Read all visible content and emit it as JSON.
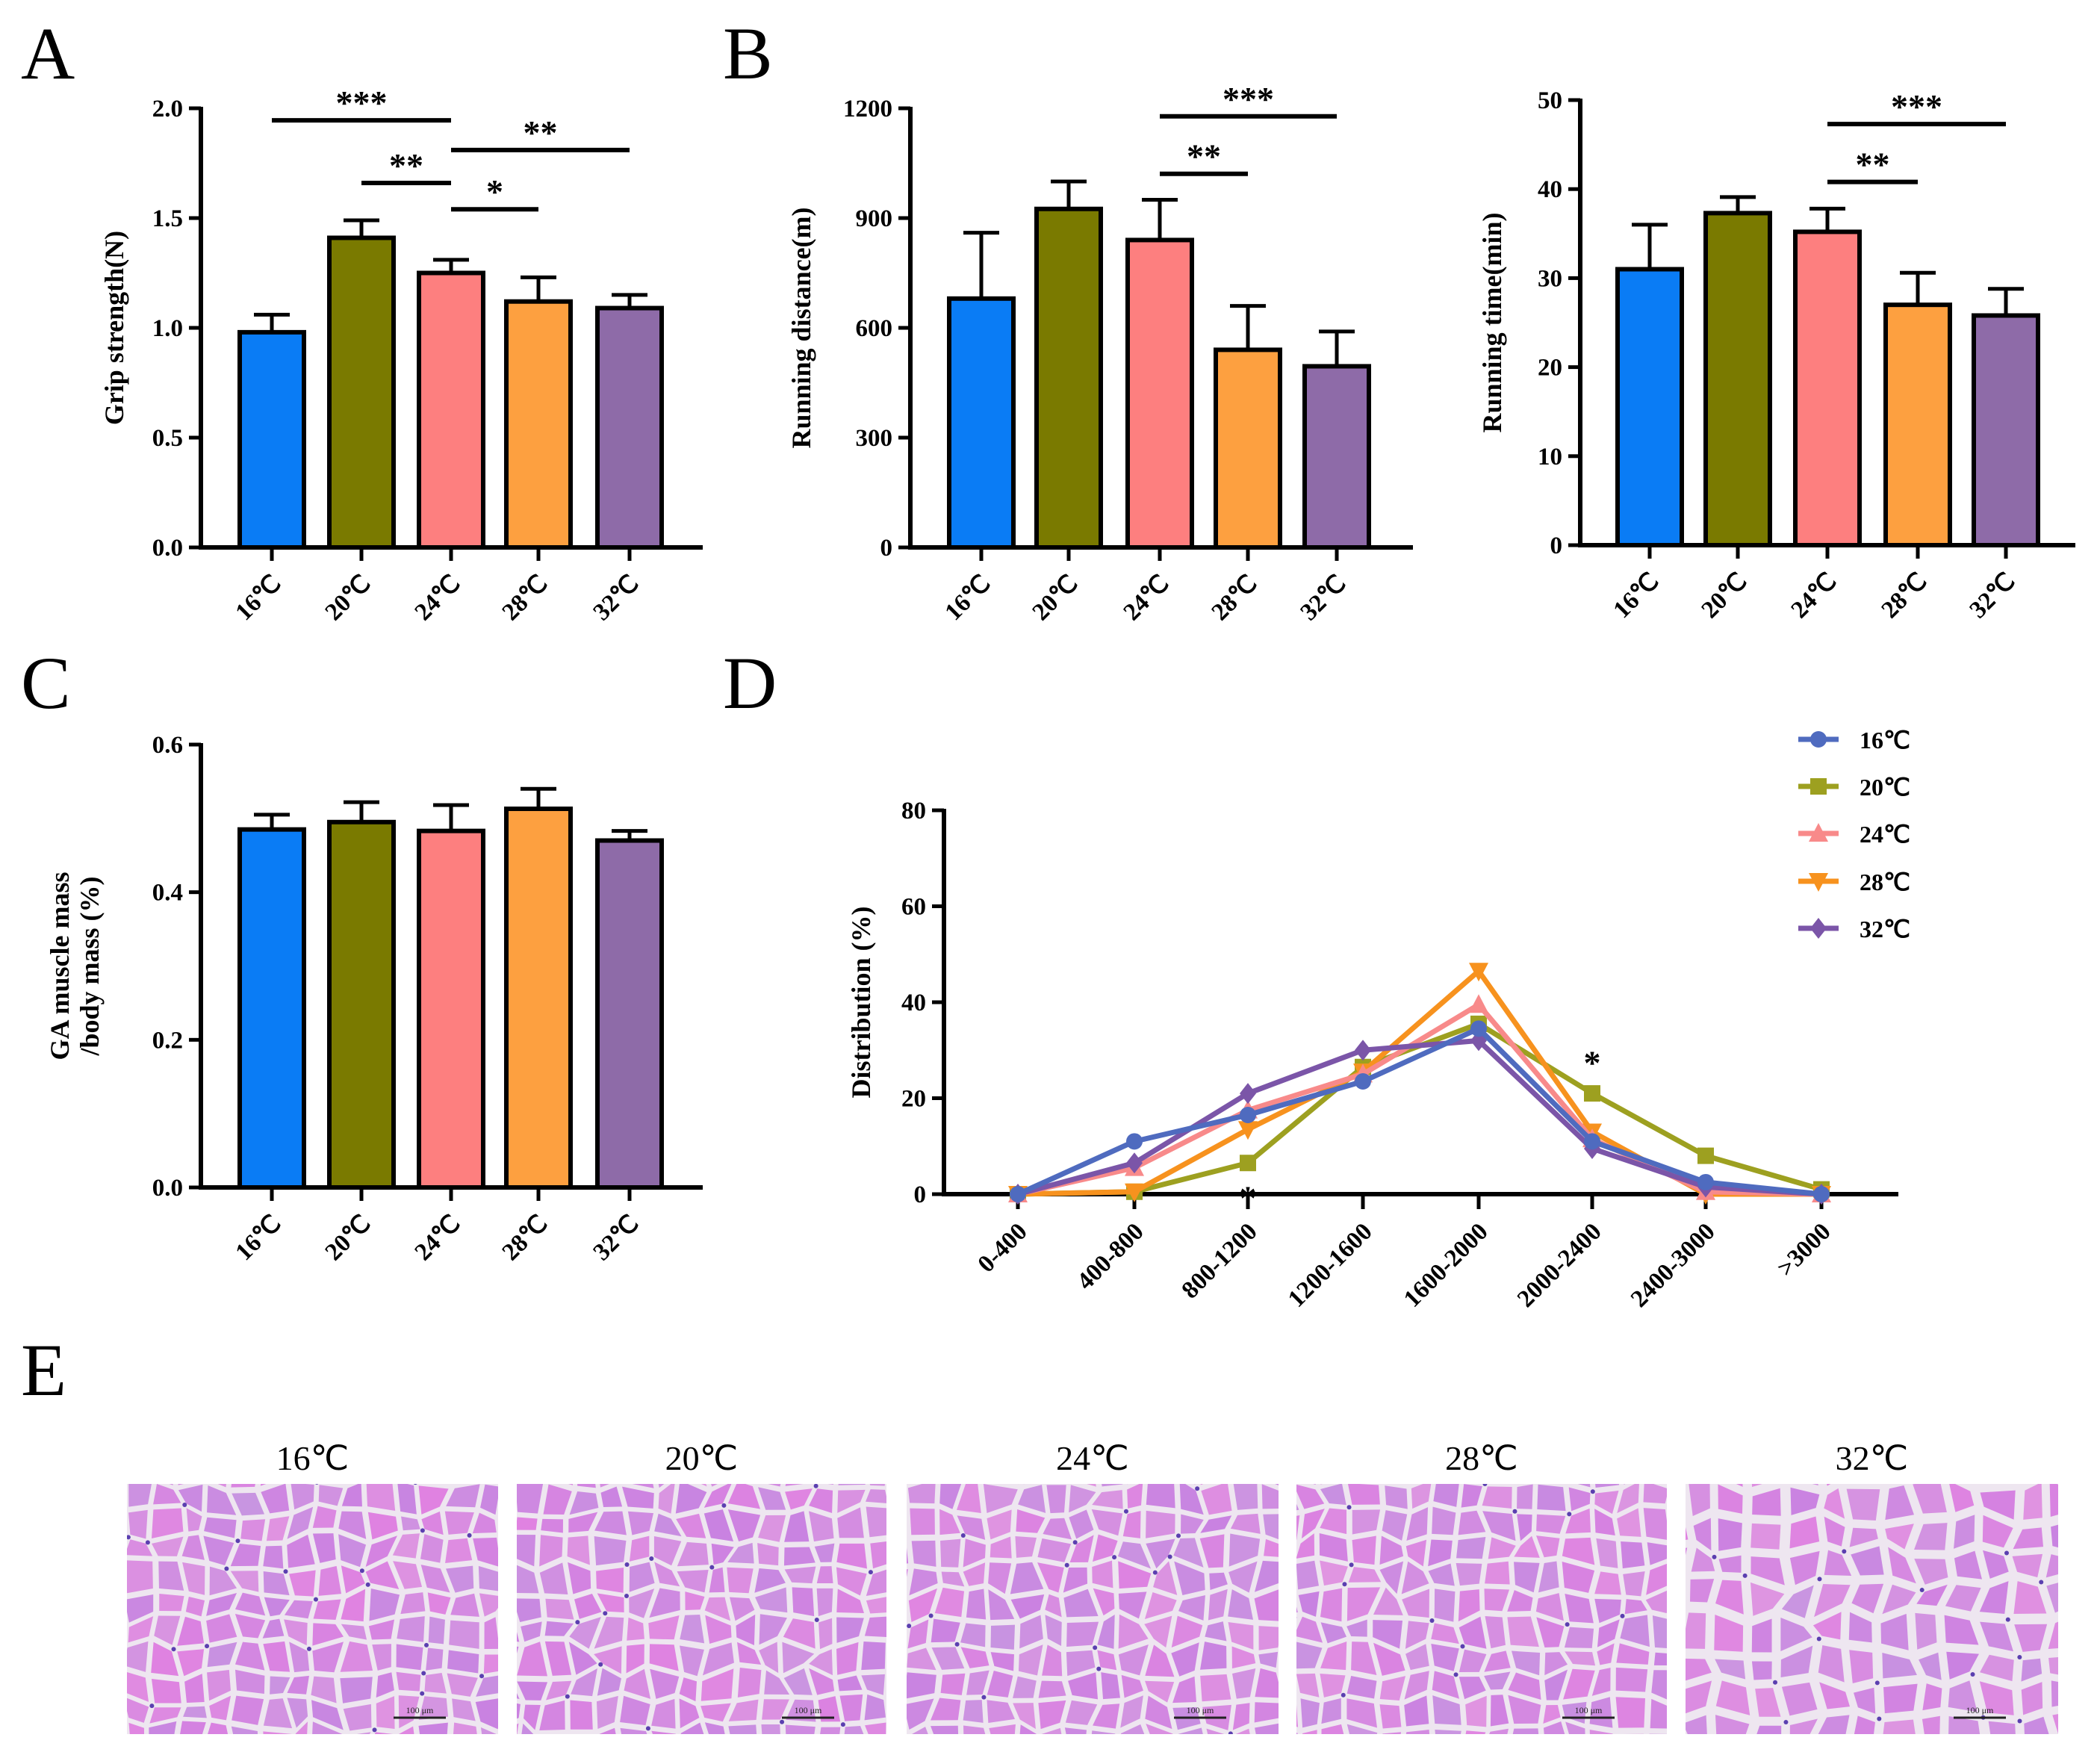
{
  "panel_labels": {
    "A": "A",
    "B": "B",
    "C": "C",
    "D": "D",
    "E": "E"
  },
  "colors": {
    "16": "#0a7cf5",
    "20": "#7a7a00",
    "24": "#fd7f7f",
    "28": "#fda040",
    "32": "#8e6ba8"
  },
  "line_colors": {
    "16": "#4f6bbf",
    "20": "#9da020",
    "24": "#f88a8a",
    "28": "#f7921e",
    "32": "#7b55a8"
  },
  "chart_data": [
    {
      "id": "A",
      "type": "bar",
      "ylabel": "Grip strength(N)",
      "categories": [
        "16℃",
        "20℃",
        "24℃",
        "28℃",
        "32℃"
      ],
      "values": [
        0.98,
        1.41,
        1.25,
        1.12,
        1.09
      ],
      "errors": [
        0.08,
        0.08,
        0.06,
        0.11,
        0.06
      ],
      "ylim": [
        0,
        2.0
      ],
      "yticks": [
        "0.0",
        "0.5",
        "1.0",
        "1.5",
        "2.0"
      ],
      "significance": [
        {
          "from": 0,
          "to": 2,
          "label": "***",
          "level": 1.945
        },
        {
          "from": 2,
          "to": 4,
          "label": "**",
          "level": 1.81
        },
        {
          "from": 1,
          "to": 2,
          "label": "**",
          "level": 1.66
        },
        {
          "from": 2,
          "to": 3,
          "label": "*",
          "level": 1.54
        }
      ]
    },
    {
      "id": "B1",
      "type": "bar",
      "ylabel": "Running distance(m)",
      "categories": [
        "16℃",
        "20℃",
        "24℃",
        "28℃",
        "32℃"
      ],
      "values": [
        680,
        925,
        840,
        540,
        495
      ],
      "errors": [
        180,
        75,
        110,
        120,
        95
      ],
      "ylim": [
        0,
        1200
      ],
      "yticks": [
        "0",
        "300",
        "600",
        "900",
        "1200"
      ],
      "significance": [
        {
          "from": 2,
          "to": 4,
          "label": "***",
          "level": 1178
        },
        {
          "from": 2,
          "to": 3,
          "label": "**",
          "level": 1021
        }
      ]
    },
    {
      "id": "B2",
      "type": "bar",
      "ylabel": "Running time(min)",
      "categories": [
        "16℃",
        "20℃",
        "24℃",
        "28℃",
        "32℃"
      ],
      "values": [
        31,
        37.3,
        35.2,
        27,
        25.8
      ],
      "errors": [
        5,
        1.8,
        2.6,
        3.6,
        3
      ],
      "ylim": [
        0,
        50
      ],
      "yticks": [
        "0",
        "10",
        "20",
        "30",
        "40",
        "50"
      ],
      "significance": [
        {
          "from": 2,
          "to": 4,
          "label": "***",
          "level": 47.3
        },
        {
          "from": 2,
          "to": 3,
          "label": "**",
          "level": 40.8
        }
      ]
    },
    {
      "id": "C",
      "type": "bar",
      "ylabel": [
        "GA muscle mass",
        "/body mass (%)"
      ],
      "categories": [
        "16℃",
        "20℃",
        "24℃",
        "28℃",
        "32℃"
      ],
      "values": [
        0.485,
        0.495,
        0.483,
        0.513,
        0.47
      ],
      "errors": [
        0.02,
        0.027,
        0.035,
        0.027,
        0.013
      ],
      "ylim": [
        0,
        0.6
      ],
      "yticks": [
        "0.0",
        "0.2",
        "0.4",
        "0.6"
      ],
      "significance": []
    },
    {
      "id": "D",
      "type": "line",
      "ylabel": "Distribution (%)",
      "categories": [
        "0-400",
        "400-800",
        "800-1200",
        "1200-1600",
        "1600-2000",
        "2000-2400",
        "2400-3000",
        ">3000"
      ],
      "ylim": [
        0,
        80
      ],
      "yticks": [
        "0",
        "20",
        "40",
        "60",
        "80"
      ],
      "legend_position": "top-right",
      "series": [
        {
          "name": "16℃",
          "key": "16",
          "marker": "circle",
          "values": [
            0,
            11,
            16.5,
            23.5,
            34.5,
            11,
            2.5,
            0
          ]
        },
        {
          "name": "20℃",
          "key": "20",
          "marker": "square",
          "values": [
            0,
            0.5,
            6.5,
            26.5,
            35.5,
            21,
            8,
            1
          ]
        },
        {
          "name": "24℃",
          "key": "24",
          "marker": "triangle-up",
          "values": [
            0,
            5.5,
            17.5,
            25,
            39.5,
            11.5,
            0.5,
            0
          ]
        },
        {
          "name": "28℃",
          "key": "28",
          "marker": "triangle-down",
          "values": [
            0,
            0.5,
            13.5,
            25.5,
            46.5,
            13,
            0,
            0
          ]
        },
        {
          "name": "32℃",
          "key": "32",
          "marker": "diamond",
          "values": [
            0,
            6.5,
            21,
            30,
            32,
            9.5,
            1.5,
            0
          ]
        }
      ],
      "annotations": [
        {
          "index": 2,
          "label": "*",
          "level": 1.5
        },
        {
          "index": 5,
          "label": "*",
          "level": 25
        }
      ]
    }
  ],
  "histology": {
    "titles": [
      "16℃",
      "20℃",
      "24℃",
      "28℃",
      "32℃"
    ],
    "scale_bar": "100 μm"
  }
}
